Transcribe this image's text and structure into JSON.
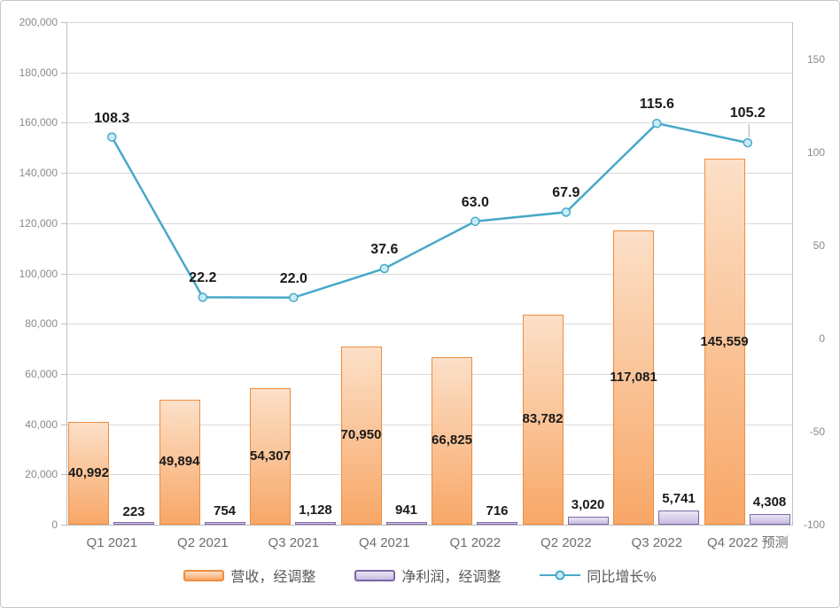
{
  "chart_data": {
    "type": "combo",
    "categories": [
      "Q1 2021",
      "Q2 2021",
      "Q3 2021",
      "Q4 2021",
      "Q1 2022",
      "Q2 2022",
      "Q3 2022",
      "Q4 2022 预测"
    ],
    "series": [
      {
        "key": "revenue",
        "name": "营收，经调整",
        "type": "bar",
        "axis": "left",
        "values": [
          40992,
          49894,
          54307,
          70950,
          66825,
          83782,
          117081,
          145559
        ],
        "labels": [
          "40,992",
          "49,894",
          "54,307",
          "70,950",
          "66,825",
          "83,782",
          "117,081",
          "145,559"
        ],
        "label_position": "inside-center"
      },
      {
        "key": "profit",
        "name": "净利润，经调整",
        "type": "bar",
        "axis": "left",
        "values": [
          223,
          754,
          1128,
          941,
          716,
          3020,
          5741,
          4308
        ],
        "labels": [
          "223",
          "754",
          "1,128",
          "941",
          "716",
          "3,020",
          "5,741",
          "4,308"
        ],
        "label_position": "above"
      },
      {
        "key": "growth",
        "name": "同比增长%",
        "type": "line",
        "axis": "right",
        "values": [
          108.3,
          22.2,
          22.0,
          37.6,
          63.0,
          67.9,
          115.6,
          105.2
        ],
        "labels": [
          "108.3",
          "22.2",
          "22.0",
          "37.6",
          "63.0",
          "67.9",
          "115.6",
          "105.2"
        ],
        "label_position": "above",
        "leader_line_on_last_point": true
      }
    ],
    "left_axis": {
      "min": 0,
      "max": 200000,
      "major_unit": 20000,
      "tick_labels": [
        "200,000",
        "180,000",
        "160,000",
        "140,000",
        "120,000",
        "100,000",
        "80,000",
        "60,000",
        "40,000",
        "20,000",
        "0"
      ]
    },
    "right_axis": {
      "min": -100,
      "max": 170,
      "major_unit": 50,
      "tick_values": [
        150,
        100,
        50,
        0,
        -50,
        -100
      ],
      "tick_labels": [
        "150",
        "100",
        "50",
        "0",
        "-50",
        "-100"
      ]
    },
    "grid": true,
    "legend_position": "bottom"
  },
  "colors": {
    "revenue_fill_top": "#fce0c8",
    "revenue_fill_bottom": "#f8a767",
    "revenue_border": "#ee8c3e",
    "profit_fill_top": "#eae5f4",
    "profit_fill_bottom": "#c8bbdf",
    "profit_border": "#7c68a8",
    "line": "#47a9c8",
    "marker_fill": "#c9ecf7",
    "grid_line": "#d9d9d9",
    "axis_line": "#bfbfbf",
    "axis_text": "#8a8a8a",
    "category_text": "#6e6e6e",
    "legend_text": "#595959",
    "data_label": "#1a1a1a",
    "leader_line": "#a6a6a6"
  }
}
